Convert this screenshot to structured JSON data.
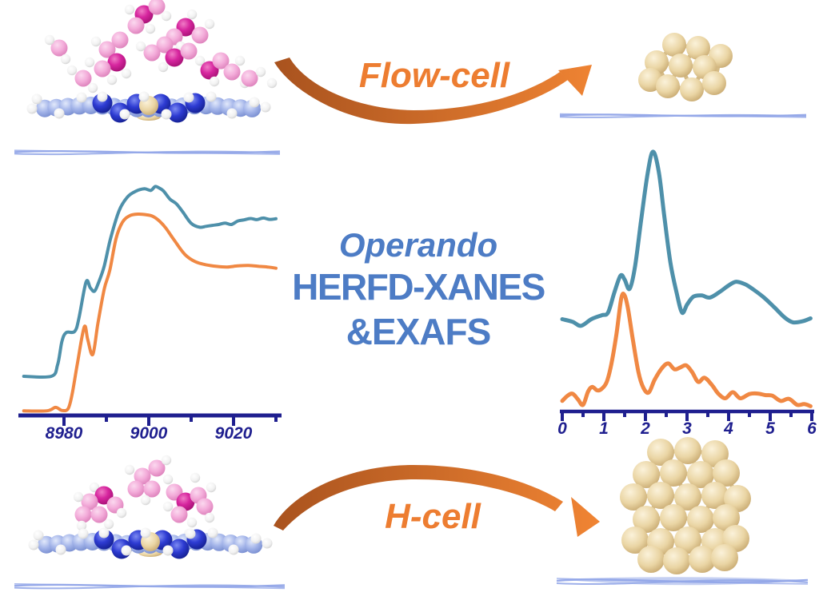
{
  "title_block": {
    "line1": "Operando",
    "line2": "HERFD-XANES",
    "line3": "&EXAFS"
  },
  "labels": {
    "flow_cell": "Flow-cell",
    "h_cell": "H-cell"
  },
  "colors": {
    "accent_orange": "#ED7D31",
    "arrow_gradient_start": "#A8521E",
    "arrow_gradient_end": "#F08433",
    "title_blue": "#4D7CC5",
    "axis_navy": "#1F1F8F",
    "curve_teal": "#4E90AA",
    "curve_orange": "#F08843",
    "sheet_blue": "#93A7E8",
    "gold": "#EAD5A4",
    "pink": "#F3ABD9",
    "magenta": "#D6259E",
    "slab_blue": "#A3B4E9",
    "nitrogen_blue": "#2D3BD2"
  },
  "figures": {
    "top_left": "solvated-single-atom-catalyst-model",
    "top_right": "small-metal-cluster-model",
    "bottom_left": "solvated-single-atom-catalyst-model",
    "bottom_right": "metal-nanoparticle-model"
  },
  "chart_data": [
    {
      "id": "xanes",
      "type": "line",
      "title": "",
      "xlabel": "",
      "ylabel": "",
      "xlim": [
        8970,
        9030
      ],
      "x_ticks_major": [
        8980,
        9000,
        9020
      ],
      "x_ticks_minor": [
        8990,
        9010,
        9030
      ],
      "grid": false,
      "legend": "none",
      "series": [
        {
          "name": "teal-spectrum",
          "color": "#4E90AA",
          "points": [
            [
              8970.5,
              0.17
            ],
            [
              8977,
              0.17
            ],
            [
              8978.5,
              0.22
            ],
            [
              8979.5,
              0.32
            ],
            [
              8980.5,
              0.36
            ],
            [
              8982.5,
              0.365
            ],
            [
              8983.5,
              0.42
            ],
            [
              8985.2,
              0.58
            ],
            [
              8986.2,
              0.555
            ],
            [
              8987.2,
              0.54
            ],
            [
              8988.2,
              0.58
            ],
            [
              8989.5,
              0.65
            ],
            [
              8991,
              0.77
            ],
            [
              8993,
              0.89
            ],
            [
              8995,
              0.95
            ],
            [
              8997,
              0.975
            ],
            [
              8999,
              0.985
            ],
            [
              9000.5,
              0.978
            ],
            [
              9001.5,
              0.995
            ],
            [
              9002.5,
              0.988
            ],
            [
              9003.5,
              0.975
            ],
            [
              9005,
              0.94
            ],
            [
              9006.5,
              0.92
            ],
            [
              9008,
              0.885
            ],
            [
              9010,
              0.835
            ],
            [
              9012,
              0.818
            ],
            [
              9013.5,
              0.822
            ],
            [
              9015,
              0.826
            ],
            [
              9016.5,
              0.83
            ],
            [
              9018,
              0.836
            ],
            [
              9019.5,
              0.83
            ],
            [
              9021,
              0.845
            ],
            [
              9022.5,
              0.85
            ],
            [
              9024,
              0.856
            ],
            [
              9025.5,
              0.851
            ],
            [
              9027,
              0.858
            ],
            [
              9028.5,
              0.852
            ],
            [
              9030,
              0.855
            ]
          ]
        },
        {
          "name": "orange-spectrum",
          "color": "#F08843",
          "points": [
            [
              8970.5,
              0.02
            ],
            [
              8976,
              0.02
            ],
            [
              8978,
              0.035
            ],
            [
              8979.5,
              0.022
            ],
            [
              8981,
              0.03
            ],
            [
              8982,
              0.1
            ],
            [
              8983.2,
              0.23
            ],
            [
              8984.8,
              0.385
            ],
            [
              8985.6,
              0.33
            ],
            [
              8986.8,
              0.265
            ],
            [
              8988,
              0.4
            ],
            [
              8989.5,
              0.55
            ],
            [
              8990.8,
              0.63
            ],
            [
              8992.3,
              0.77
            ],
            [
              8993.8,
              0.84
            ],
            [
              8995.5,
              0.868
            ],
            [
              8997.5,
              0.875
            ],
            [
              8999.5,
              0.872
            ],
            [
              9001,
              0.865
            ],
            [
              9002.5,
              0.845
            ],
            [
              9004,
              0.815
            ],
            [
              9006,
              0.762
            ],
            [
              9008.5,
              0.7
            ],
            [
              9011,
              0.668
            ],
            [
              9013.5,
              0.655
            ],
            [
              9016,
              0.648
            ],
            [
              9018.5,
              0.645
            ],
            [
              9021,
              0.65
            ],
            [
              9023.5,
              0.652
            ],
            [
              9026,
              0.648
            ],
            [
              9028,
              0.645
            ],
            [
              9030,
              0.64
            ]
          ]
        }
      ]
    },
    {
      "id": "exafs",
      "type": "line",
      "title": "",
      "xlabel": "",
      "ylabel": "",
      "xlim": [
        0,
        6
      ],
      "x_ticks_major": [
        0,
        1,
        2,
        3,
        4,
        5,
        6
      ],
      "x_ticks_minor": [
        0.5,
        1.5,
        2.5,
        3.5,
        4.5,
        5.5
      ],
      "grid": false,
      "legend": "none",
      "series": [
        {
          "name": "teal-ft",
          "color": "#4E90AA",
          "points": [
            [
              0,
              0.35
            ],
            [
              0.25,
              0.34
            ],
            [
              0.45,
              0.325
            ],
            [
              0.7,
              0.35
            ],
            [
              0.95,
              0.365
            ],
            [
              1.1,
              0.375
            ],
            [
              1.25,
              0.45
            ],
            [
              1.4,
              0.515
            ],
            [
              1.5,
              0.5
            ],
            [
              1.62,
              0.465
            ],
            [
              1.75,
              0.55
            ],
            [
              1.9,
              0.73
            ],
            [
              2.05,
              0.9
            ],
            [
              2.18,
              0.985
            ],
            [
              2.32,
              0.91
            ],
            [
              2.45,
              0.745
            ],
            [
              2.6,
              0.565
            ],
            [
              2.75,
              0.45
            ],
            [
              2.88,
              0.375
            ],
            [
              3.0,
              0.405
            ],
            [
              3.15,
              0.435
            ],
            [
              3.35,
              0.44
            ],
            [
              3.55,
              0.432
            ],
            [
              3.8,
              0.455
            ],
            [
              4.0,
              0.478
            ],
            [
              4.18,
              0.492
            ],
            [
              4.4,
              0.482
            ],
            [
              4.6,
              0.462
            ],
            [
              4.85,
              0.432
            ],
            [
              5.1,
              0.395
            ],
            [
              5.35,
              0.356
            ],
            [
              5.55,
              0.338
            ],
            [
              5.78,
              0.342
            ],
            [
              5.97,
              0.353
            ]
          ]
        },
        {
          "name": "orange-ft",
          "color": "#F08843",
          "points": [
            [
              0,
              0.04
            ],
            [
              0.13,
              0.06
            ],
            [
              0.25,
              0.067
            ],
            [
              0.38,
              0.045
            ],
            [
              0.5,
              0.025
            ],
            [
              0.62,
              0.075
            ],
            [
              0.72,
              0.093
            ],
            [
              0.84,
              0.08
            ],
            [
              0.95,
              0.086
            ],
            [
              1.07,
              0.112
            ],
            [
              1.18,
              0.18
            ],
            [
              1.3,
              0.29
            ],
            [
              1.42,
              0.43
            ],
            [
              1.5,
              0.44
            ],
            [
              1.58,
              0.39
            ],
            [
              1.7,
              0.27
            ],
            [
              1.83,
              0.15
            ],
            [
              1.95,
              0.09
            ],
            [
              2.08,
              0.072
            ],
            [
              2.22,
              0.12
            ],
            [
              2.4,
              0.165
            ],
            [
              2.55,
              0.182
            ],
            [
              2.7,
              0.16
            ],
            [
              2.85,
              0.168
            ],
            [
              2.98,
              0.175
            ],
            [
              3.12,
              0.15
            ],
            [
              3.27,
              0.112
            ],
            [
              3.42,
              0.128
            ],
            [
              3.6,
              0.1
            ],
            [
              3.75,
              0.068
            ],
            [
              3.92,
              0.05
            ],
            [
              4.1,
              0.073
            ],
            [
              4.28,
              0.05
            ],
            [
              4.5,
              0.066
            ],
            [
              4.7,
              0.068
            ],
            [
              4.88,
              0.062
            ],
            [
              5.05,
              0.06
            ],
            [
              5.25,
              0.04
            ],
            [
              5.45,
              0.048
            ],
            [
              5.65,
              0.025
            ],
            [
              5.82,
              0.028
            ],
            [
              5.97,
              0.02
            ]
          ]
        }
      ]
    }
  ]
}
